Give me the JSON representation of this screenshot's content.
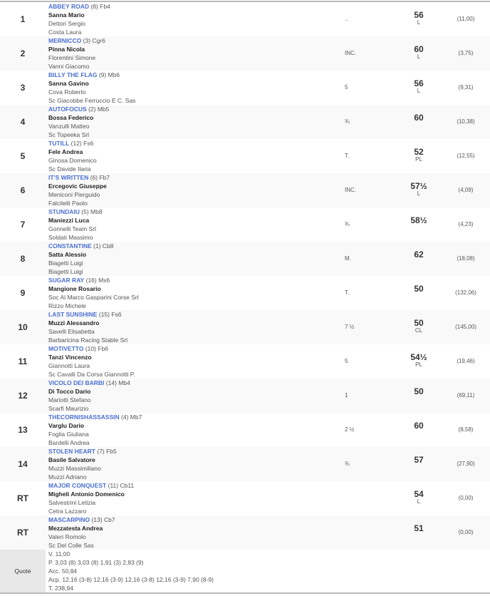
{
  "rows": [
    {
      "pos": "1",
      "horse": "ABBEY ROAD",
      "extra": "(8) Fb4",
      "jockey": "Sanna Mario",
      "trainer": "Dettori Sergio",
      "owner": "Costa Laura",
      "dist": "..",
      "weight": "56",
      "tag": "L",
      "odds": "(11,00)"
    },
    {
      "pos": "2",
      "horse": "MERNICCO",
      "extra": "(3) Cgr6",
      "jockey": "Pinna Nicola",
      "trainer": "Florentini Simone",
      "owner": "Vanni Giacomo",
      "dist": "INC.",
      "weight": "60",
      "tag": "L",
      "odds": "(3,75)"
    },
    {
      "pos": "3",
      "horse": "BILLY THE FLAG",
      "extra": "(9) Mb6",
      "jockey": "Sanna Gavino",
      "trainer": "Cova Roberto",
      "owner": "Sc Giacobbe Ferruccio E C. Sas",
      "dist": "5",
      "weight": "56",
      "tag": "L",
      "odds": "(9,31)"
    },
    {
      "pos": "4",
      "horse": "AUTOFOCUS",
      "extra": "(2) Mb5",
      "jockey": "Bossa Federico",
      "trainer": "Vanzulli Matteo",
      "owner": "Sc Topeeka Srl",
      "dist": "¾",
      "weight": "60",
      "tag": "",
      "odds": "(10,38)"
    },
    {
      "pos": "5",
      "horse": "TUTILL",
      "extra": "(12) Fs6",
      "jockey": "Fele Andrea",
      "trainer": "Ginosa Domenico",
      "owner": "Sc Davide Ilaria",
      "dist": "T.",
      "weight": "52",
      "tag": "PL",
      "odds": "(12,55)"
    },
    {
      "pos": "6",
      "horse": "IT'S WRITTEN",
      "extra": "(6) Fb7",
      "jockey": "Ercegovic Giuseppe",
      "trainer": "Meniconi Pierguido",
      "owner": "Falcitelli Paolo",
      "dist": "INC.",
      "weight": "57½",
      "tag": "L",
      "odds": "(4,09)"
    },
    {
      "pos": "7",
      "horse": "STUNDAIU",
      "extra": "(5) Mb8",
      "jockey": "Maniezzi Luca",
      "trainer": "Gonnelli Team Srl",
      "owner": "Soldati Massimo",
      "dist": "¾",
      "weight": "58½",
      "tag": "",
      "odds": "(4,23)"
    },
    {
      "pos": "8",
      "horse": "CONSTANTINE",
      "extra": "(1) Cb8",
      "jockey": "Satta Alessio",
      "trainer": "Biagetti Luigi",
      "owner": "Biagetti Luigi",
      "dist": "M.",
      "weight": "62",
      "tag": "",
      "odds": "(18,08)"
    },
    {
      "pos": "9",
      "horse": "SUGAR RAY",
      "extra": "(16) Ms6",
      "jockey": "Mangione Rosario",
      "trainer": "Soc Al Marco Gasparini Corse Srl",
      "owner": "Rizzo Michele",
      "dist": "T.",
      "weight": "50",
      "tag": "",
      "odds": "(132,06)"
    },
    {
      "pos": "10",
      "horse": "LAST SUNSHINE",
      "extra": "(15) Fs6",
      "jockey": "Muzzi Alessandro",
      "trainer": "Savelli Elisabetta",
      "owner": "Barbaricina Racing Stable Srl",
      "dist": "7 ½",
      "weight": "50",
      "tag": "CL",
      "odds": "(145,00)"
    },
    {
      "pos": "11",
      "horse": "MOTIVETTO",
      "extra": "(10) Fb6",
      "jockey": "Tanzi Vincenzo",
      "trainer": "Giannotti Laura",
      "owner": "Sc Cavalli Da Corsa Giannotti P.",
      "dist": "5",
      "weight": "54½",
      "tag": "PL",
      "odds": "(19,46)"
    },
    {
      "pos": "12",
      "horse": "VICOLO DEI BARBI",
      "extra": "(14) Mb4",
      "jockey": "Di Tocco Dario",
      "trainer": "Mariotti Stefano",
      "owner": "Scarfi Maurizio",
      "dist": "1",
      "weight": "50",
      "tag": "",
      "odds": "(69,11)"
    },
    {
      "pos": "13",
      "horse": "THECORNISHASSASSIN",
      "extra": "(4) Mb7",
      "jockey": "Varglu Dario",
      "trainer": "Foglia Giuliana",
      "owner": "Bardelli Andrea",
      "dist": "2 ½",
      "weight": "60",
      "tag": "",
      "odds": "(8,58)"
    },
    {
      "pos": "14",
      "horse": "STOLEN HEART",
      "extra": "(7) Fb5",
      "jockey": "Basile Salvatore",
      "trainer": "Muzzi Massimiliano",
      "owner": "Muzzi Adriano",
      "dist": "¾",
      "weight": "57",
      "tag": "",
      "odds": "(27,90)"
    },
    {
      "pos": "RT",
      "horse": "MAJOR CONQUEST",
      "extra": "(11) Cb11",
      "jockey": "Migheli Antonio Domenico",
      "trainer": "Salvestrini Letizia",
      "owner": "Cetra Lazzaro",
      "dist": "",
      "weight": "54",
      "tag": "L",
      "odds": "(0,00)"
    },
    {
      "pos": "RT",
      "horse": "MASCARPINO",
      "extra": "(13) Cb7",
      "jockey": "Mezzatesta Andrea",
      "trainer": "Valeri Romolo",
      "owner": "Sc Del Colle Sas",
      "dist": "",
      "weight": "51",
      "tag": "",
      "odds": "(0,00)"
    }
  ],
  "quote": {
    "label": "Quote",
    "lines": [
      "V. 11,00",
      "P. 3,03 (8)  3,03 (8)  1,91 (3)  2,83 (9)",
      "Acc. 50,84",
      "Acp. 12,16 (3-8)  12,16 (3-9)  12,16 (3-8)  12,16 (3-9)  7,90 (8-9)",
      "T. 238,94"
    ]
  }
}
